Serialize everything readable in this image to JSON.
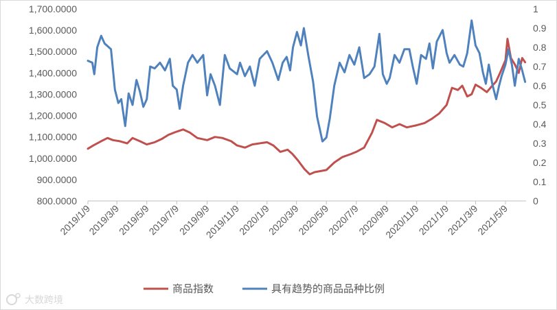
{
  "chart_data": {
    "type": "line",
    "grid": false,
    "legend_position": "bottom",
    "x_ticks": [
      "2019/1/9",
      "2019/3/9",
      "2019/5/9",
      "2019/7/9",
      "2019/9/9",
      "2019/11/9",
      "2020/1/9",
      "2020/3/9",
      "2020/5/9",
      "2020/7/9",
      "2020/9/9",
      "2020/11/9",
      "2021/1/9",
      "2021/3/9",
      "2021/5/9"
    ],
    "x_range": [
      "2019-01-09",
      "2021-06-20"
    ],
    "y_left": {
      "min": 800,
      "max": 1700,
      "ticks": [
        "800.0000",
        "900.0000",
        "1,000.0000",
        "1,100.0000",
        "1,200.0000",
        "1,300.0000",
        "1,400.0000",
        "1,500.0000",
        "1,600.0000",
        "1,700.0000"
      ]
    },
    "y_right": {
      "min": 0,
      "max": 1,
      "ticks": [
        "0",
        "0.1",
        "0.2",
        "0.3",
        "0.4",
        "0.5",
        "0.6",
        "0.7",
        "0.8",
        "0.9",
        "1"
      ]
    },
    "series": [
      {
        "name": "商品指数",
        "axis": "left",
        "color": "#c0504d",
        "points": [
          [
            "2019-01-09",
            1045
          ],
          [
            "2019-01-20",
            1060
          ],
          [
            "2019-02-05",
            1080
          ],
          [
            "2019-02-18",
            1095
          ],
          [
            "2019-03-01",
            1085
          ],
          [
            "2019-03-15",
            1080
          ],
          [
            "2019-03-30",
            1070
          ],
          [
            "2019-04-10",
            1095
          ],
          [
            "2019-04-25",
            1080
          ],
          [
            "2019-05-09",
            1065
          ],
          [
            "2019-05-25",
            1075
          ],
          [
            "2019-06-08",
            1090
          ],
          [
            "2019-06-22",
            1110
          ],
          [
            "2019-07-09",
            1125
          ],
          [
            "2019-07-22",
            1135
          ],
          [
            "2019-08-05",
            1120
          ],
          [
            "2019-08-20",
            1095
          ],
          [
            "2019-09-09",
            1085
          ],
          [
            "2019-09-25",
            1100
          ],
          [
            "2019-10-10",
            1095
          ],
          [
            "2019-10-28",
            1080
          ],
          [
            "2019-11-09",
            1060
          ],
          [
            "2019-11-25",
            1050
          ],
          [
            "2019-12-10",
            1065
          ],
          [
            "2020-01-09",
            1075
          ],
          [
            "2020-01-22",
            1060
          ],
          [
            "2020-02-05",
            1030
          ],
          [
            "2020-02-20",
            1040
          ],
          [
            "2020-03-01",
            1020
          ],
          [
            "2020-03-12",
            990
          ],
          [
            "2020-03-25",
            950
          ],
          [
            "2020-04-05",
            925
          ],
          [
            "2020-04-15",
            935
          ],
          [
            "2020-05-09",
            945
          ],
          [
            "2020-05-25",
            980
          ],
          [
            "2020-06-10",
            1005
          ],
          [
            "2020-06-28",
            1020
          ],
          [
            "2020-07-09",
            1030
          ],
          [
            "2020-07-25",
            1050
          ],
          [
            "2020-08-10",
            1120
          ],
          [
            "2020-08-20",
            1180
          ],
          [
            "2020-09-05",
            1165
          ],
          [
            "2020-09-20",
            1145
          ],
          [
            "2020-10-05",
            1160
          ],
          [
            "2020-10-20",
            1145
          ],
          [
            "2020-11-09",
            1155
          ],
          [
            "2020-11-25",
            1165
          ],
          [
            "2020-12-10",
            1185
          ],
          [
            "2020-12-25",
            1210
          ],
          [
            "2021-01-09",
            1250
          ],
          [
            "2021-01-20",
            1330
          ],
          [
            "2021-02-01",
            1320
          ],
          [
            "2021-02-10",
            1340
          ],
          [
            "2021-02-20",
            1290
          ],
          [
            "2021-03-01",
            1300
          ],
          [
            "2021-03-09",
            1345
          ],
          [
            "2021-03-20",
            1330
          ],
          [
            "2021-04-01",
            1310
          ],
          [
            "2021-04-10",
            1335
          ],
          [
            "2021-04-20",
            1360
          ],
          [
            "2021-04-28",
            1400
          ],
          [
            "2021-05-09",
            1460
          ],
          [
            "2021-05-13",
            1560
          ],
          [
            "2021-05-20",
            1470
          ],
          [
            "2021-05-28",
            1440
          ],
          [
            "2021-06-05",
            1400
          ],
          [
            "2021-06-12",
            1470
          ],
          [
            "2021-06-18",
            1450
          ]
        ]
      },
      {
        "name": "具有趋势的商品品种比例",
        "axis": "right",
        "color": "#4f81bd",
        "points": [
          [
            "2019-01-09",
            0.73
          ],
          [
            "2019-01-18",
            0.72
          ],
          [
            "2019-01-22",
            0.66
          ],
          [
            "2019-01-28",
            0.8
          ],
          [
            "2019-02-05",
            0.86
          ],
          [
            "2019-02-12",
            0.82
          ],
          [
            "2019-02-25",
            0.79
          ],
          [
            "2019-03-05",
            0.58
          ],
          [
            "2019-03-12",
            0.51
          ],
          [
            "2019-03-18",
            0.53
          ],
          [
            "2019-03-22",
            0.46
          ],
          [
            "2019-03-26",
            0.39
          ],
          [
            "2019-04-02",
            0.56
          ],
          [
            "2019-04-10",
            0.5
          ],
          [
            "2019-04-18",
            0.63
          ],
          [
            "2019-04-25",
            0.57
          ],
          [
            "2019-05-02",
            0.49
          ],
          [
            "2019-05-09",
            0.53
          ],
          [
            "2019-05-16",
            0.7
          ],
          [
            "2019-05-25",
            0.69
          ],
          [
            "2019-06-05",
            0.72
          ],
          [
            "2019-06-15",
            0.68
          ],
          [
            "2019-06-25",
            0.74
          ],
          [
            "2019-07-01",
            0.6
          ],
          [
            "2019-07-09",
            0.58
          ],
          [
            "2019-07-15",
            0.48
          ],
          [
            "2019-07-22",
            0.6
          ],
          [
            "2019-08-01",
            0.72
          ],
          [
            "2019-08-10",
            0.76
          ],
          [
            "2019-08-20",
            0.72
          ],
          [
            "2019-09-01",
            0.76
          ],
          [
            "2019-09-09",
            0.55
          ],
          [
            "2019-09-16",
            0.66
          ],
          [
            "2019-09-25",
            0.6
          ],
          [
            "2019-10-05",
            0.5
          ],
          [
            "2019-10-15",
            0.76
          ],
          [
            "2019-10-25",
            0.69
          ],
          [
            "2019-11-09",
            0.66
          ],
          [
            "2019-11-15",
            0.72
          ],
          [
            "2019-11-25",
            0.65
          ],
          [
            "2019-12-05",
            0.7
          ],
          [
            "2019-12-15",
            0.6
          ],
          [
            "2019-12-25",
            0.74
          ],
          [
            "2020-01-09",
            0.78
          ],
          [
            "2020-01-20",
            0.72
          ],
          [
            "2020-02-01",
            0.63
          ],
          [
            "2020-02-10",
            0.72
          ],
          [
            "2020-02-18",
            0.75
          ],
          [
            "2020-02-25",
            0.68
          ],
          [
            "2020-03-02",
            0.8
          ],
          [
            "2020-03-10",
            0.88
          ],
          [
            "2020-03-18",
            0.81
          ],
          [
            "2020-03-24",
            0.9
          ],
          [
            "2020-04-02",
            0.76
          ],
          [
            "2020-04-12",
            0.62
          ],
          [
            "2020-04-20",
            0.44
          ],
          [
            "2020-05-01",
            0.31
          ],
          [
            "2020-05-09",
            0.33
          ],
          [
            "2020-05-16",
            0.43
          ],
          [
            "2020-05-25",
            0.6
          ],
          [
            "2020-06-05",
            0.72
          ],
          [
            "2020-06-15",
            0.67
          ],
          [
            "2020-06-25",
            0.76
          ],
          [
            "2020-07-05",
            0.71
          ],
          [
            "2020-07-15",
            0.8
          ],
          [
            "2020-07-25",
            0.64
          ],
          [
            "2020-08-05",
            0.66
          ],
          [
            "2020-08-15",
            0.7
          ],
          [
            "2020-08-25",
            0.87
          ],
          [
            "2020-09-01",
            0.66
          ],
          [
            "2020-09-09",
            0.61
          ],
          [
            "2020-09-15",
            0.64
          ],
          [
            "2020-09-25",
            0.76
          ],
          [
            "2020-10-05",
            0.72
          ],
          [
            "2020-10-15",
            0.79
          ],
          [
            "2020-10-25",
            0.79
          ],
          [
            "2020-11-01",
            0.7
          ],
          [
            "2020-11-09",
            0.61
          ],
          [
            "2020-11-18",
            0.76
          ],
          [
            "2020-11-28",
            0.74
          ],
          [
            "2020-12-05",
            0.82
          ],
          [
            "2020-12-12",
            0.69
          ],
          [
            "2020-12-20",
            0.83
          ],
          [
            "2021-01-01",
            0.89
          ],
          [
            "2021-01-09",
            0.77
          ],
          [
            "2021-01-15",
            0.72
          ],
          [
            "2021-01-25",
            0.76
          ],
          [
            "2021-02-05",
            0.71
          ],
          [
            "2021-02-12",
            0.7
          ],
          [
            "2021-02-20",
            0.77
          ],
          [
            "2021-03-01",
            0.94
          ],
          [
            "2021-03-09",
            0.81
          ],
          [
            "2021-03-17",
            0.77
          ],
          [
            "2021-03-24",
            0.67
          ],
          [
            "2021-03-30",
            0.61
          ],
          [
            "2021-04-05",
            0.71
          ],
          [
            "2021-04-12",
            0.61
          ],
          [
            "2021-04-20",
            0.53
          ],
          [
            "2021-04-26",
            0.6
          ],
          [
            "2021-05-01",
            0.65
          ],
          [
            "2021-05-09",
            0.71
          ],
          [
            "2021-05-15",
            0.79
          ],
          [
            "2021-05-22",
            0.71
          ],
          [
            "2021-05-28",
            0.6
          ],
          [
            "2021-06-05",
            0.74
          ],
          [
            "2021-06-12",
            0.68
          ],
          [
            "2021-06-18",
            0.62
          ]
        ]
      }
    ]
  },
  "watermark": {
    "text": "大数跨境",
    "logo": "dashujujing-logo"
  }
}
